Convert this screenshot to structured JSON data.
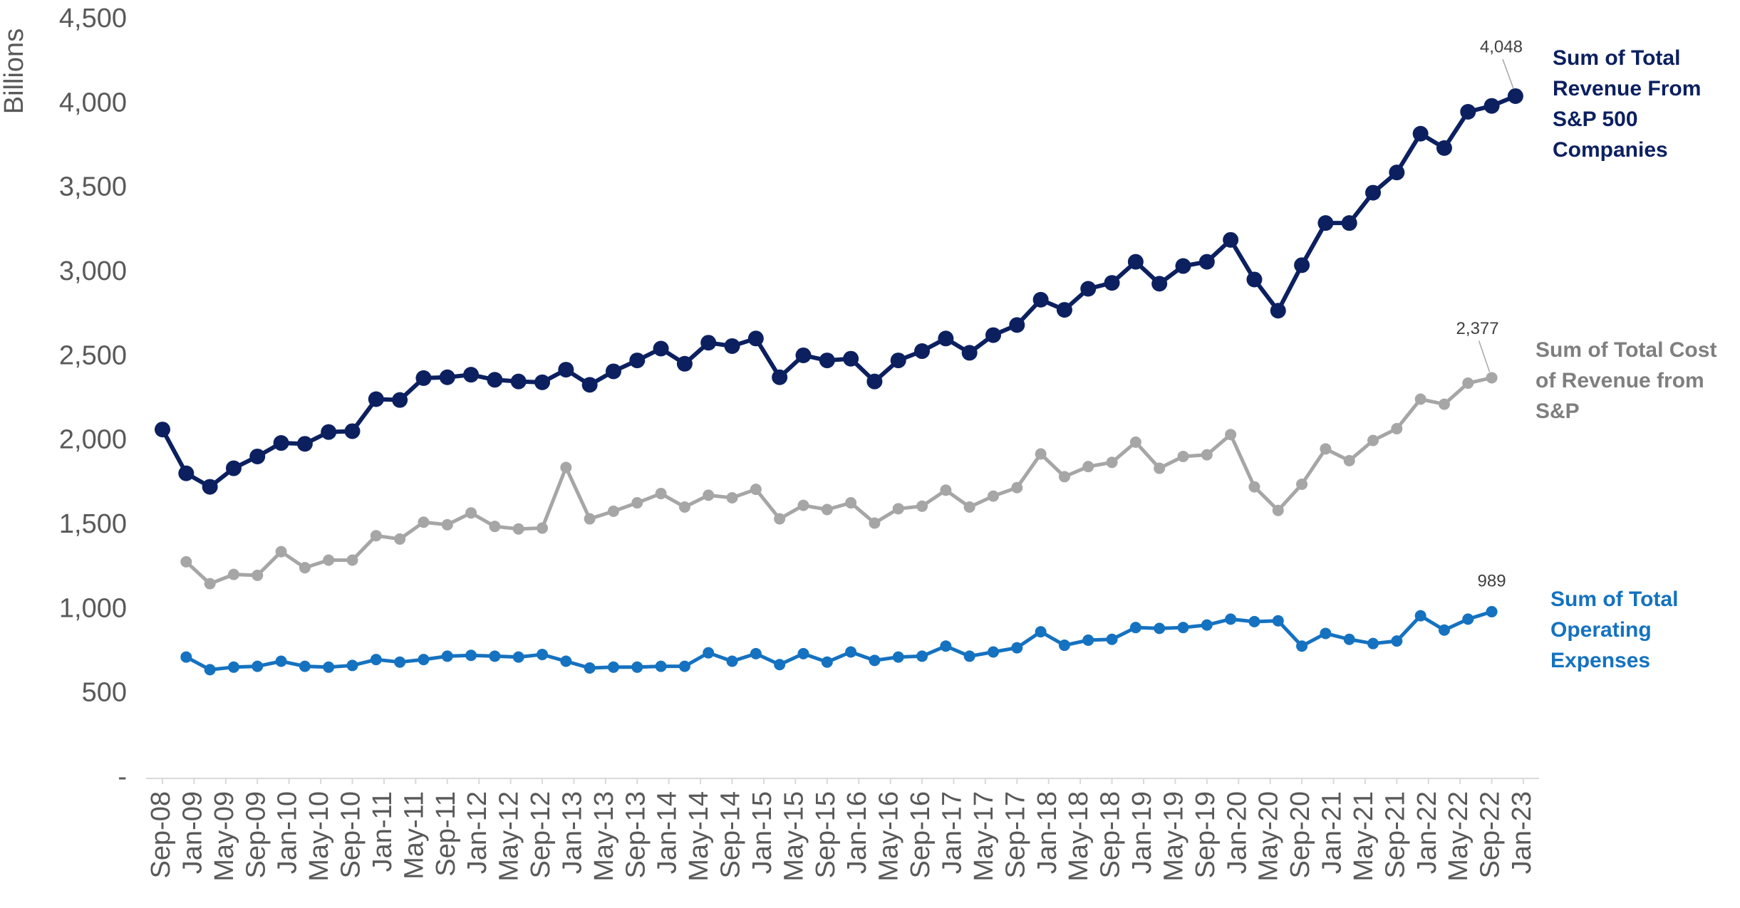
{
  "chart_data": {
    "type": "line",
    "ylabel": "Billions",
    "ylim": [
      0,
      4500
    ],
    "yticks": [
      {
        "value": 0,
        "label": "-"
      },
      500,
      {
        "value": 1000,
        "label": "1,000"
      },
      {
        "value": 1500,
        "label": "1,500"
      },
      {
        "value": 2000,
        "label": "2,000"
      },
      {
        "value": 2500,
        "label": "2,500"
      },
      {
        "value": 3000,
        "label": "3,000"
      },
      {
        "value": 3500,
        "label": "3,500"
      },
      {
        "value": 4000,
        "label": "4,000"
      },
      {
        "value": 4500,
        "label": "4,500"
      }
    ],
    "xlim": [
      "2008-09",
      "2023-01"
    ],
    "xticks": [
      {
        "value": "2008-09",
        "label": "Sep-08"
      },
      {
        "value": "2009-01",
        "label": "Jan-09"
      },
      {
        "value": "2009-05",
        "label": "May-09"
      },
      {
        "value": "2009-09",
        "label": "Sep-09"
      },
      {
        "value": "2010-01",
        "label": "Jan-10"
      },
      {
        "value": "2010-05",
        "label": "May-10"
      },
      {
        "value": "2010-09",
        "label": "Sep-10"
      },
      {
        "value": "2011-01",
        "label": "Jan-11"
      },
      {
        "value": "2011-05",
        "label": "May-11"
      },
      {
        "value": "2011-09",
        "label": "Sep-11"
      },
      {
        "value": "2012-01",
        "label": "Jan-12"
      },
      {
        "value": "2012-05",
        "label": "May-12"
      },
      {
        "value": "2012-09",
        "label": "Sep-12"
      },
      {
        "value": "2013-01",
        "label": "Jan-13"
      },
      {
        "value": "2013-05",
        "label": "May-13"
      },
      {
        "value": "2013-09",
        "label": "Sep-13"
      },
      {
        "value": "2014-01",
        "label": "Jan-14"
      },
      {
        "value": "2014-05",
        "label": "May-14"
      },
      {
        "value": "2014-09",
        "label": "Sep-14"
      },
      {
        "value": "2015-01",
        "label": "Jan-15"
      },
      {
        "value": "2015-05",
        "label": "May-15"
      },
      {
        "value": "2015-09",
        "label": "Sep-15"
      },
      {
        "value": "2016-01",
        "label": "Jan-16"
      },
      {
        "value": "2016-05",
        "label": "May-16"
      },
      {
        "value": "2016-09",
        "label": "Sep-16"
      },
      {
        "value": "2017-01",
        "label": "Jan-17"
      },
      {
        "value": "2017-05",
        "label": "May-17"
      },
      {
        "value": "2017-09",
        "label": "Sep-17"
      },
      {
        "value": "2018-01",
        "label": "Jan-18"
      },
      {
        "value": "2018-05",
        "label": "May-18"
      },
      {
        "value": "2018-09",
        "label": "Sep-18"
      },
      {
        "value": "2019-01",
        "label": "Jan-19"
      },
      {
        "value": "2019-05",
        "label": "May-19"
      },
      {
        "value": "2019-09",
        "label": "Sep-19"
      },
      {
        "value": "2020-01",
        "label": "Jan-20"
      },
      {
        "value": "2020-05",
        "label": "May-20"
      },
      {
        "value": "2020-09",
        "label": "Sep-20"
      },
      {
        "value": "2021-01",
        "label": "Jan-21"
      },
      {
        "value": "2021-05",
        "label": "May-21"
      },
      {
        "value": "2021-09",
        "label": "Sep-21"
      },
      {
        "value": "2022-01",
        "label": "Jan-22"
      },
      {
        "value": "2022-05",
        "label": "May-22"
      },
      {
        "value": "2022-09",
        "label": "Sep-22"
      },
      {
        "value": "2023-01",
        "label": "Jan-23"
      }
    ],
    "x": [
      "2008-09",
      "2008-12",
      "2009-03",
      "2009-06",
      "2009-09",
      "2009-12",
      "2010-03",
      "2010-06",
      "2010-09",
      "2010-12",
      "2011-03",
      "2011-06",
      "2011-09",
      "2011-12",
      "2012-03",
      "2012-06",
      "2012-09",
      "2012-12",
      "2013-03",
      "2013-06",
      "2013-09",
      "2013-12",
      "2014-03",
      "2014-06",
      "2014-09",
      "2014-12",
      "2015-03",
      "2015-06",
      "2015-09",
      "2015-12",
      "2016-03",
      "2016-06",
      "2016-09",
      "2016-12",
      "2017-03",
      "2017-06",
      "2017-09",
      "2017-12",
      "2018-03",
      "2018-06",
      "2018-09",
      "2018-12",
      "2019-03",
      "2019-06",
      "2019-09",
      "2019-12",
      "2020-03",
      "2020-06",
      "2020-09",
      "2020-12",
      "2021-03",
      "2021-06",
      "2021-09",
      "2021-12",
      "2022-03",
      "2022-06",
      "2022-09",
      "2022-12"
    ],
    "series": [
      {
        "name": "Sum of Total Revenue From S&P 500 Companies",
        "color": "#0c2060",
        "values": [
          2070,
          1810,
          1730,
          1840,
          1910,
          1990,
          1985,
          2055,
          2060,
          2250,
          2245,
          2375,
          2380,
          2395,
          2365,
          2355,
          2350,
          2425,
          2335,
          2415,
          2480,
          2550,
          2460,
          2585,
          2565,
          2610,
          2380,
          2510,
          2480,
          2490,
          2355,
          2480,
          2535,
          2610,
          2525,
          2630,
          2690,
          2840,
          2780,
          2905,
          2940,
          3065,
          2935,
          3040,
          3065,
          3195,
          2960,
          2775,
          3045,
          3295,
          3295,
          3475,
          3595,
          3825,
          3740,
          3955,
          3990,
          4048
        ],
        "value_labels": [
          null,
          null,
          null,
          null,
          null,
          null,
          null,
          null,
          null,
          null,
          null,
          null,
          null,
          null,
          null,
          null,
          null,
          null,
          null,
          null,
          null,
          null,
          null,
          null,
          null,
          null,
          null,
          null,
          null,
          null,
          null,
          null,
          null,
          null,
          null,
          null,
          null,
          null,
          null,
          null,
          null,
          null,
          null,
          null,
          null,
          null,
          null,
          null,
          null,
          null,
          null,
          null,
          null,
          null,
          null,
          null,
          null,
          "4,048"
        ]
      },
      {
        "name": "Sum of Total Cost of Revenue from S&P",
        "color": "#a6a6a6",
        "values": [
          null,
          1285,
          1155,
          1210,
          1205,
          1345,
          1250,
          1295,
          1295,
          1440,
          1420,
          1520,
          1505,
          1575,
          1495,
          1480,
          1485,
          1845,
          1540,
          1585,
          1635,
          1690,
          1610,
          1680,
          1665,
          1715,
          1540,
          1620,
          1595,
          1635,
          1515,
          1600,
          1615,
          1710,
          1610,
          1675,
          1725,
          1925,
          1790,
          1850,
          1875,
          1995,
          1840,
          1910,
          1920,
          2040,
          1730,
          1590,
          1745,
          1955,
          1885,
          2005,
          2075,
          2250,
          2220,
          2345,
          2377,
          null
        ],
        "value_labels": [
          null,
          null,
          null,
          null,
          null,
          null,
          null,
          null,
          null,
          null,
          null,
          null,
          null,
          null,
          null,
          null,
          null,
          null,
          null,
          null,
          null,
          null,
          null,
          null,
          null,
          null,
          null,
          null,
          null,
          null,
          null,
          null,
          null,
          null,
          null,
          null,
          null,
          null,
          null,
          null,
          null,
          null,
          null,
          null,
          null,
          null,
          null,
          null,
          null,
          null,
          null,
          null,
          null,
          null,
          null,
          null,
          "2,377",
          null
        ]
      },
      {
        "name": "Sum of Total Operating Expenses",
        "color": "#1572c0",
        "values": [
          null,
          720,
          645,
          660,
          665,
          695,
          665,
          660,
          670,
          705,
          690,
          705,
          725,
          730,
          725,
          720,
          735,
          695,
          655,
          660,
          660,
          665,
          665,
          745,
          695,
          740,
          675,
          740,
          690,
          750,
          700,
          720,
          725,
          785,
          725,
          750,
          775,
          870,
          790,
          820,
          825,
          895,
          890,
          895,
          910,
          945,
          930,
          935,
          785,
          860,
          825,
          800,
          815,
          965,
          880,
          945,
          989,
          null
        ],
        "value_labels": [
          null,
          null,
          null,
          null,
          null,
          null,
          null,
          null,
          null,
          null,
          null,
          null,
          null,
          null,
          null,
          null,
          null,
          null,
          null,
          null,
          null,
          null,
          null,
          null,
          null,
          null,
          null,
          null,
          null,
          null,
          null,
          null,
          null,
          null,
          null,
          null,
          null,
          null,
          null,
          null,
          null,
          null,
          null,
          null,
          null,
          null,
          null,
          null,
          null,
          null,
          null,
          null,
          null,
          null,
          null,
          null,
          "989",
          null
        ]
      }
    ]
  }
}
